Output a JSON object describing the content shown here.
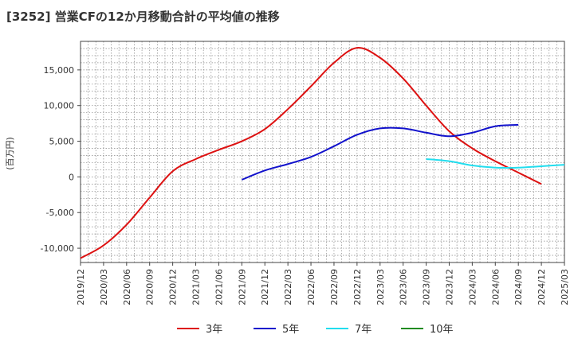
{
  "title": "[3252]  営業CFの12か月移動合計の平均値の推移",
  "chart_data": {
    "type": "line",
    "ylabel": "(百万円)",
    "xlabel": "",
    "ylim": [
      -12000,
      19000
    ],
    "yticks": [
      15000,
      10000,
      5000,
      0,
      -5000,
      -10000
    ],
    "ytick_labels": [
      "15,000",
      "10,000",
      "5,000",
      "0",
      "-5,000",
      "-10,000"
    ],
    "x_categories": [
      "2019/12",
      "2020/03",
      "2020/06",
      "2020/09",
      "2020/12",
      "2021/03",
      "2021/06",
      "2021/09",
      "2021/12",
      "2022/03",
      "2022/06",
      "2022/09",
      "2022/12",
      "2023/03",
      "2023/06",
      "2023/09",
      "2023/12",
      "2024/03",
      "2024/06",
      "2024/09",
      "2024/12",
      "2025/03"
    ],
    "grid": true,
    "legend_position": "bottom",
    "series": [
      {
        "name": "3年",
        "color": "#dd1111",
        "start_index": 0,
        "values": [
          -11400,
          -9600,
          -6700,
          -2900,
          800,
          2500,
          3800,
          5000,
          6700,
          9500,
          12700,
          16000,
          18100,
          16700,
          13800,
          10000,
          6400,
          4000,
          2200,
          600,
          -1000
        ]
      },
      {
        "name": "5年",
        "color": "#1111cc",
        "start_index": 7,
        "values": [
          -400,
          900,
          1800,
          2800,
          4300,
          5900,
          6800,
          6800,
          6200,
          5700,
          6200,
          7100,
          7300
        ]
      },
      {
        "name": "7年",
        "color": "#22ddee",
        "start_index": 15,
        "values": [
          2500,
          2200,
          1600,
          1300,
          1300,
          1500,
          1700
        ]
      },
      {
        "name": "10年",
        "color": "#228B22",
        "start_index": 0,
        "values": []
      }
    ]
  }
}
